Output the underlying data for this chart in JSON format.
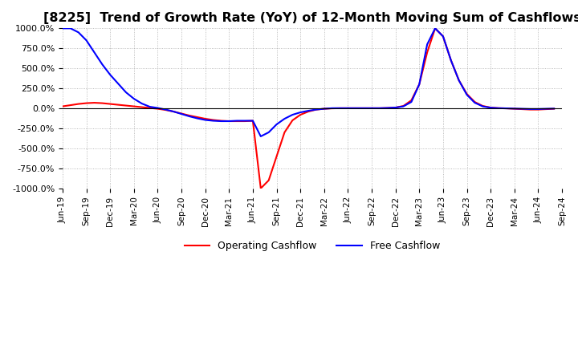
{
  "title": "[8225]  Trend of Growth Rate (YoY) of 12-Month Moving Sum of Cashflows",
  "title_fontsize": 11.5,
  "ylim": [
    -1000,
    1000
  ],
  "yticks": [
    -1000,
    -750,
    -500,
    -250,
    0,
    250,
    500,
    750,
    1000
  ],
  "yticklabels": [
    "-1000.0%",
    "-750.0%",
    "-500.0%",
    "-250.0%",
    "0.0%",
    "250.0%",
    "500.0%",
    "750.0%",
    "1000.0%"
  ],
  "background_color": "#ffffff",
  "grid_color": "#aaaaaa",
  "operating_color": "#ff0000",
  "free_color": "#0000ff",
  "legend_labels": [
    "Operating Cashflow",
    "Free Cashflow"
  ],
  "xtick_positions": [
    0,
    3,
    6,
    9,
    12,
    15,
    18,
    21,
    24,
    27,
    30,
    33,
    36,
    39,
    42,
    45,
    48,
    51,
    54,
    57,
    60,
    63
  ],
  "xtick_labels": [
    "Jun-19",
    "Sep-19",
    "Dec-19",
    "Mar-20",
    "Jun-20",
    "Sep-20",
    "Dec-20",
    "Mar-21",
    "Jun-21",
    "Sep-21",
    "Dec-21",
    "Mar-22",
    "Jun-22",
    "Sep-22",
    "Dec-22",
    "Mar-23",
    "Jun-23",
    "Sep-23",
    "Dec-23",
    "Mar-24",
    "Jun-24",
    "Sep-24"
  ],
  "operating_cashflow": [
    25,
    40,
    55,
    65,
    70,
    65,
    55,
    45,
    35,
    25,
    15,
    5,
    -5,
    -20,
    -40,
    -65,
    -90,
    -110,
    -130,
    -145,
    -155,
    -160,
    -160,
    -160,
    -155,
    -1000,
    -900,
    -600,
    -300,
    -150,
    -80,
    -40,
    -15,
    -5,
    0,
    2,
    2,
    2,
    2,
    2,
    2,
    5,
    10,
    30,
    100,
    300,
    700,
    1000,
    900,
    600,
    350,
    180,
    80,
    30,
    10,
    3,
    0,
    -5,
    -10,
    -15,
    -15,
    -10,
    -5
  ],
  "free_cashflow": [
    1000,
    1000,
    950,
    850,
    700,
    550,
    420,
    310,
    200,
    120,
    60,
    20,
    5,
    -15,
    -40,
    -70,
    -100,
    -125,
    -145,
    -155,
    -160,
    -160,
    -155,
    -155,
    -155,
    -350,
    -300,
    -200,
    -130,
    -80,
    -50,
    -30,
    -15,
    -5,
    2,
    2,
    2,
    2,
    2,
    2,
    2,
    5,
    10,
    25,
    80,
    300,
    800,
    1000,
    900,
    600,
    350,
    170,
    70,
    25,
    8,
    2,
    0,
    -3,
    -5,
    -8,
    -8,
    -5,
    -3
  ]
}
